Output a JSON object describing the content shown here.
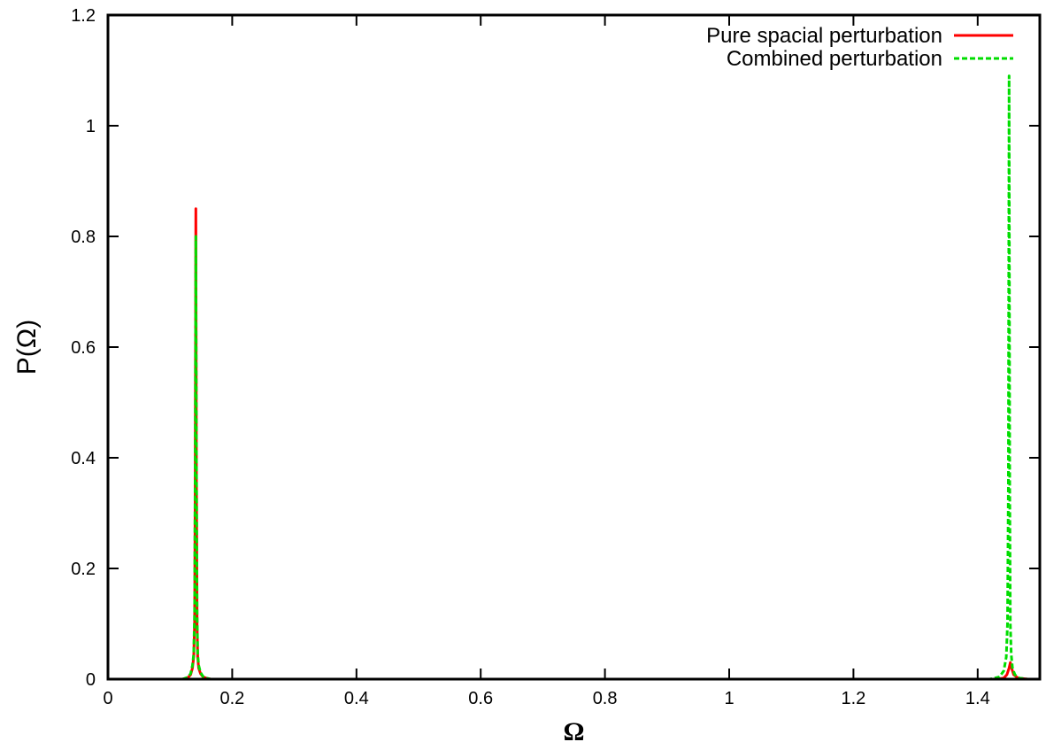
{
  "chart_data": {
    "type": "line",
    "title": "",
    "xlabel": "Ω",
    "ylabel": "P(Ω)",
    "xlim": [
      0,
      1.5
    ],
    "ylim": [
      0,
      1.2
    ],
    "xticks": [
      0,
      0.2,
      0.4,
      0.6,
      0.8,
      1,
      1.2,
      1.4
    ],
    "xtick_labels": [
      "0",
      "0.2",
      "0.4",
      "0.6",
      "0.8",
      "1",
      "1.2",
      "1.4"
    ],
    "yticks": [
      0,
      0.2,
      0.4,
      0.6,
      0.8,
      1,
      1.2
    ],
    "ytick_labels": [
      "0",
      "0.2",
      "0.4",
      "0.6",
      "0.8",
      "1",
      "1.2"
    ],
    "grid": false,
    "legend_position": "top-right",
    "series": [
      {
        "name": "Pure spacial perturbation",
        "color": "#ff0000",
        "style": "solid",
        "x": [
          0.12,
          0.128,
          0.133,
          0.136,
          0.138,
          0.1395,
          0.1405,
          0.1415,
          0.1425,
          0.1435,
          0.1445,
          0.146,
          0.149,
          0.153,
          0.158,
          0.165,
          0.2,
          1.0,
          1.43,
          1.442,
          1.447,
          1.4505,
          1.4525,
          1.4545,
          1.458,
          1.465,
          1.48
        ],
        "y": [
          0,
          0.002,
          0.008,
          0.02,
          0.04,
          0.1,
          0.35,
          0.85,
          0.35,
          0.1,
          0.04,
          0.02,
          0.01,
          0.004,
          0.002,
          0,
          0,
          0,
          0,
          0.002,
          0.008,
          0.02,
          0.03,
          0.02,
          0.008,
          0.002,
          0
        ]
      },
      {
        "name": "Combined perturbation",
        "color": "#00dd00",
        "style": "dashed",
        "x": [
          0.12,
          0.128,
          0.133,
          0.136,
          0.138,
          0.1395,
          0.1405,
          0.1415,
          0.1425,
          0.1435,
          0.1445,
          0.146,
          0.149,
          0.153,
          0.158,
          0.165,
          0.2,
          1.0,
          1.42,
          1.435,
          1.442,
          1.446,
          1.448,
          1.4495,
          1.4505,
          1.4515,
          1.4525,
          1.454,
          1.456,
          1.46,
          1.467,
          1.48
        ],
        "y": [
          0,
          0.003,
          0.01,
          0.025,
          0.045,
          0.12,
          0.4,
          0.8,
          0.4,
          0.12,
          0.045,
          0.025,
          0.012,
          0.005,
          0.002,
          0,
          0,
          0,
          0,
          0.004,
          0.015,
          0.04,
          0.1,
          0.35,
          1.09,
          0.35,
          0.1,
          0.045,
          0.02,
          0.008,
          0.002,
          0
        ]
      }
    ]
  }
}
